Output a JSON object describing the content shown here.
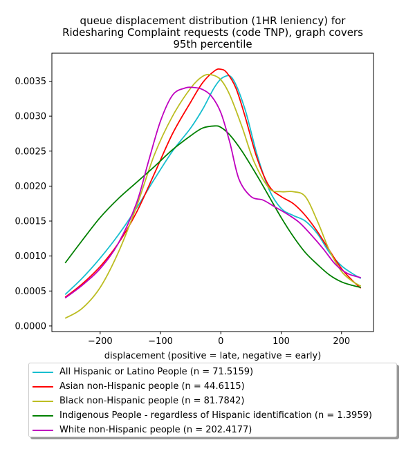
{
  "chart_data": {
    "type": "line",
    "title": "queue displacement distribution (1HR leniency) for\nRidesharing Complaint  requests (code TNP), graph covers\n95th percentile",
    "xlabel": "displacement (positive = late, negative = early)",
    "ylabel": "",
    "xlim": [
      -280,
      253
    ],
    "ylim": [
      -8e-05,
      0.0039
    ],
    "xticks": [
      -200,
      -100,
      0,
      100,
      200
    ],
    "xtick_labels": [
      "−200",
      "−100",
      "0",
      "100",
      "200"
    ],
    "yticks": [
      0.0,
      0.0005,
      0.001,
      0.0015,
      0.002,
      0.0025,
      0.003,
      0.0035
    ],
    "ytick_labels": [
      "0.0000",
      "0.0005",
      "0.0010",
      "0.0015",
      "0.0020",
      "0.0025",
      "0.0030",
      "0.0035"
    ],
    "grid": false,
    "legend_position": "below",
    "series": [
      {
        "name": "All Hispanic or Latino People (n = 71.5159)",
        "color": "#17becf",
        "x": [
          -258,
          -230,
          -200,
          -170,
          -140,
          -110,
          -80,
          -50,
          -30,
          -10,
          5,
          20,
          40,
          60,
          80,
          100,
          120,
          140,
          160,
          180,
          200,
          218,
          232
        ],
        "y": [
          0.00045,
          0.00068,
          0.00097,
          0.0013,
          0.00168,
          0.0021,
          0.0025,
          0.00283,
          0.0031,
          0.00342,
          0.00356,
          0.00353,
          0.0031,
          0.00245,
          0.00195,
          0.00168,
          0.00158,
          0.0015,
          0.00132,
          0.00105,
          0.00086,
          0.00075,
          0.00068
        ]
      },
      {
        "name": "Asian non-Hispanic people (n = 44.6115)",
        "color": "#ff0000",
        "x": [
          -258,
          -230,
          -200,
          -170,
          -140,
          -110,
          -80,
          -50,
          -30,
          -10,
          0,
          10,
          25,
          40,
          60,
          80,
          100,
          120,
          140,
          160,
          180,
          200,
          218,
          232
        ],
        "y": [
          0.00041,
          0.0006,
          0.00085,
          0.00118,
          0.00162,
          0.00218,
          0.00275,
          0.0032,
          0.00348,
          0.00365,
          0.00367,
          0.00362,
          0.0034,
          0.003,
          0.0024,
          0.002,
          0.00185,
          0.00175,
          0.00158,
          0.00135,
          0.00108,
          0.00082,
          0.00065,
          0.00054
        ]
      },
      {
        "name": "Black non-Hispanic people (n = 81.7842)",
        "color": "#bcbd22",
        "x": [
          -258,
          -230,
          -200,
          -170,
          -140,
          -110,
          -80,
          -50,
          -30,
          -15,
          0,
          15,
          35,
          55,
          80,
          100,
          120,
          140,
          160,
          180,
          200,
          218,
          232
        ],
        "y": [
          0.00011,
          0.00025,
          0.00055,
          0.00105,
          0.0017,
          0.00245,
          0.003,
          0.0034,
          0.00357,
          0.00359,
          0.00352,
          0.0033,
          0.00285,
          0.00235,
          0.00197,
          0.00192,
          0.00192,
          0.00185,
          0.0015,
          0.00108,
          0.00078,
          0.00064,
          0.00057
        ]
      },
      {
        "name": "Indigenous People - regardless of Hispanic identification (n = 1.3959)",
        "color": "#008000",
        "x": [
          -258,
          -230,
          -200,
          -170,
          -140,
          -110,
          -80,
          -50,
          -30,
          -10,
          0,
          15,
          35,
          60,
          80,
          100,
          120,
          140,
          160,
          180,
          200,
          218,
          232
        ],
        "y": [
          0.0009,
          0.00122,
          0.00155,
          0.00182,
          0.00205,
          0.00228,
          0.00252,
          0.00272,
          0.00283,
          0.00286,
          0.00284,
          0.00273,
          0.0025,
          0.00215,
          0.00185,
          0.00155,
          0.00128,
          0.00105,
          0.00088,
          0.00073,
          0.00063,
          0.00058,
          0.00055
        ]
      },
      {
        "name": "White non-Hispanic people (n = 202.4177)",
        "color": "#bf00bf",
        "x": [
          -258,
          -230,
          -200,
          -170,
          -140,
          -120,
          -100,
          -80,
          -60,
          -45,
          -30,
          -15,
          0,
          15,
          30,
          50,
          70,
          90,
          110,
          130,
          150,
          170,
          190,
          210,
          232
        ],
        "y": [
          0.0004,
          0.00058,
          0.00082,
          0.00118,
          0.00175,
          0.00235,
          0.00293,
          0.0033,
          0.0034,
          0.00341,
          0.00338,
          0.00328,
          0.00305,
          0.00262,
          0.0021,
          0.00185,
          0.0018,
          0.0017,
          0.0016,
          0.00148,
          0.0013,
          0.0011,
          0.00088,
          0.00075,
          0.00069
        ]
      }
    ]
  }
}
